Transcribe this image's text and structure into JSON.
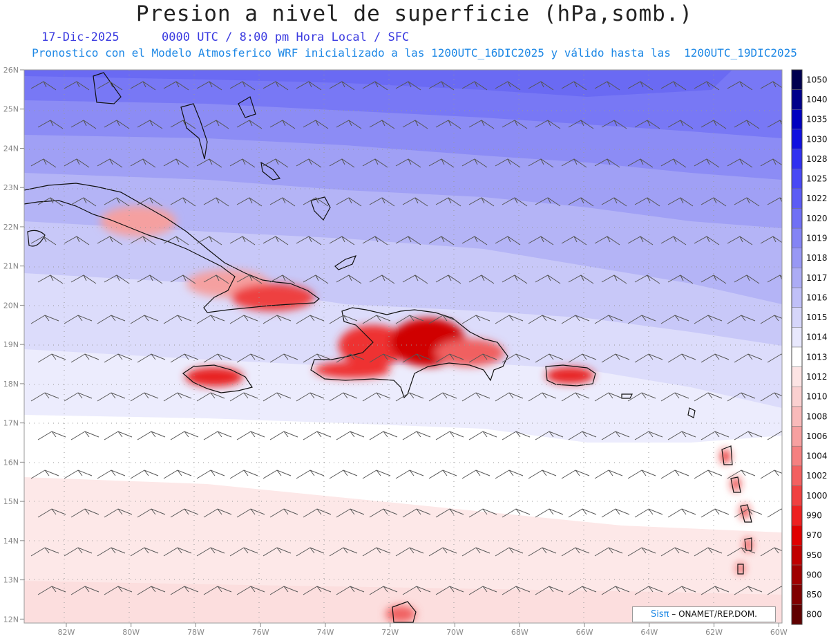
{
  "header": {
    "title": "Presion a nivel de superficie (hPa,somb.)",
    "date": "17-Dic-2025",
    "time": "0000 UTC / 8:00 pm Hora Local / SFC",
    "forecast": "Pronostico con el Modelo Atmosferico WRF inicializado a las 1200UTC_16DIC2025 y válido hasta las  1200UTC_19DIC2025"
  },
  "axes": {
    "lat_labels": [
      "26N",
      "25N",
      "24N",
      "23N",
      "22N",
      "21N",
      "20N",
      "19N",
      "18N",
      "17N",
      "16N",
      "15N",
      "14N",
      "13N",
      "12N"
    ],
    "lon_labels": [
      "82W",
      "80W",
      "78W",
      "76W",
      "74W",
      "72W",
      "70W",
      "68W",
      "66W",
      "64W",
      "62W",
      "60W"
    ],
    "lat_range": [
      11.9,
      26.0
    ],
    "lon_range": [
      -83.3,
      -59.9
    ]
  },
  "colorbar": {
    "levels": [
      "1050",
      "1040",
      "1035",
      "1030",
      "1028",
      "1025",
      "1022",
      "1020",
      "1019",
      "1018",
      "1017",
      "1016",
      "1015",
      "1014",
      "1013",
      "1012",
      "1010",
      "1008",
      "1006",
      "1004",
      "1002",
      "1000",
      "990",
      "970",
      "950",
      "900",
      "850",
      "800"
    ],
    "colors": [
      "#000050",
      "#00008b",
      "#0000c0",
      "#1010e0",
      "#3030f0",
      "#4848f5",
      "#5c5cf5",
      "#7070f5",
      "#8484f5",
      "#9898f5",
      "#acacf5",
      "#c0c0f8",
      "#d6d6fa",
      "#e8e8fd",
      "#ffffff",
      "#fde4e4",
      "#fbd0d0",
      "#f9baba",
      "#f7a0a0",
      "#f58080",
      "#f36060",
      "#f04040",
      "#ee2020",
      "#e00000",
      "#c00000",
      "#a00000",
      "#800000",
      "#600000"
    ]
  },
  "credit": {
    "brand": "Sisπ",
    "text": " ONAMET/REP.DOM."
  }
}
